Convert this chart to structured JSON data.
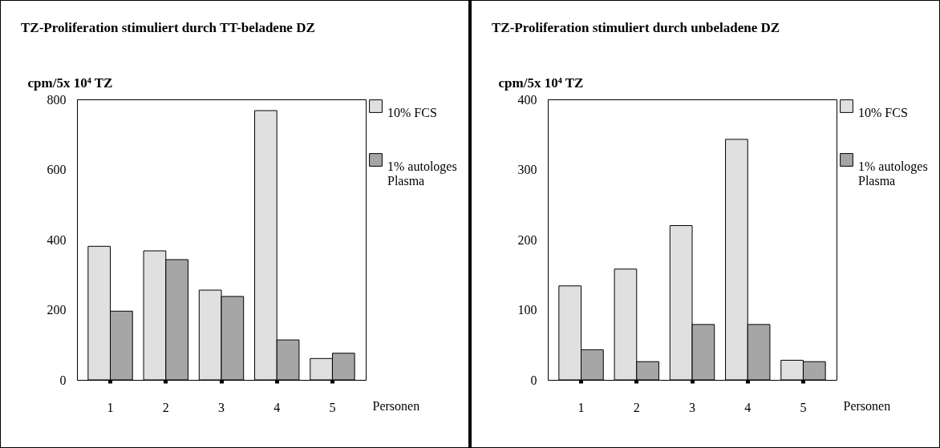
{
  "chart_data": [
    {
      "type": "bar",
      "title": "TZ-Proliferation stimuliert durch TT-beladene DZ",
      "ylabel": "cpm/5x 10⁴ TZ",
      "xlabel": "Personen",
      "categories": [
        "1",
        "2",
        "3",
        "4",
        "5"
      ],
      "series": [
        {
          "name": "10% FCS",
          "color": "#e0e0e0",
          "values": [
            381,
            368,
            256,
            768,
            61
          ]
        },
        {
          "name": "1% autologes Plasma",
          "color": "#a6a6a6",
          "values": [
            196,
            343,
            238,
            114,
            76
          ]
        }
      ],
      "ylim": [
        0,
        800
      ],
      "yticks": [
        0,
        200,
        400,
        600,
        800
      ],
      "legend": "right"
    },
    {
      "type": "bar",
      "title": "TZ-Proliferation stimuliert durch unbeladene DZ",
      "ylabel": "cpm/5x 10⁴ TZ",
      "xlabel": "Personen",
      "categories": [
        "1",
        "2",
        "3",
        "4",
        "5"
      ],
      "series": [
        {
          "name": "10% FCS",
          "color": "#e0e0e0",
          "values": [
            134,
            158,
            220,
            343,
            28
          ]
        },
        {
          "name": "1% autologes Plasma",
          "color": "#a6a6a6",
          "values": [
            43,
            26,
            79,
            79,
            26
          ]
        }
      ],
      "ylim": [
        0,
        400
      ],
      "yticks": [
        0,
        100,
        200,
        300,
        400
      ],
      "legend": "right"
    }
  ]
}
